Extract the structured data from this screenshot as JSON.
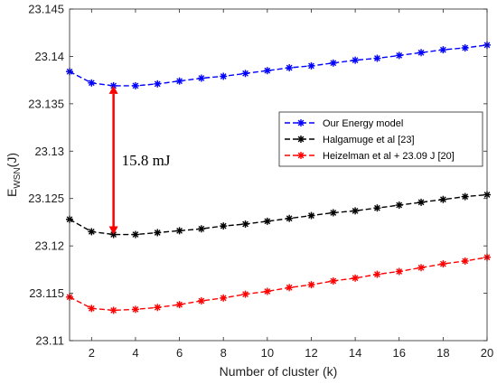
{
  "chart_data": {
    "type": "line",
    "xlabel": "Number of cluster (k)",
    "ylabel_main": "E",
    "ylabel_sub": "WSN",
    "ylabel_unit": "(J)",
    "xlim": [
      1,
      20
    ],
    "ylim": [
      23.11,
      23.145
    ],
    "xticks": [
      "2",
      "4",
      "6",
      "8",
      "10",
      "12",
      "14",
      "16",
      "18",
      "20"
    ],
    "yticks": [
      "23.11",
      "23.115",
      "23.12",
      "23.125",
      "23.13",
      "23.135",
      "23.14",
      "23.145"
    ],
    "x": [
      1,
      2,
      3,
      4,
      5,
      6,
      7,
      8,
      9,
      10,
      11,
      12,
      13,
      14,
      15,
      16,
      17,
      18,
      19,
      20
    ],
    "grid": false,
    "legend_position": "center-right",
    "series": [
      {
        "name": "Our Energy model",
        "color": "#0000ff",
        "values": [
          23.1384,
          23.1372,
          23.1369,
          23.1369,
          23.1371,
          23.1374,
          23.1377,
          23.1379,
          23.1382,
          23.1385,
          23.1388,
          23.139,
          23.1393,
          23.1396,
          23.1398,
          23.1401,
          23.1404,
          23.1407,
          23.1409,
          23.1412
        ]
      },
      {
        "name": "Halgamuge et al [23]",
        "color": "#000000",
        "values": [
          23.1228,
          23.1215,
          23.1212,
          23.1212,
          23.1214,
          23.1216,
          23.1218,
          23.1221,
          23.1223,
          23.1226,
          23.1229,
          23.1232,
          23.1235,
          23.1237,
          23.124,
          23.1243,
          23.1246,
          23.1249,
          23.1252,
          23.1254
        ]
      },
      {
        "name": "Heizelman et al + 23.09 J [20]",
        "color": "#ff0000",
        "values": [
          23.1146,
          23.1134,
          23.1132,
          23.1133,
          23.1135,
          23.1138,
          23.1142,
          23.1145,
          23.1149,
          23.1152,
          23.1156,
          23.1159,
          23.1163,
          23.1166,
          23.117,
          23.1173,
          23.1177,
          23.1181,
          23.1184,
          23.1188
        ]
      }
    ],
    "annotation": {
      "text": "15.8 mJ",
      "color": "#ff0000",
      "x": 3,
      "y_top": 23.1369,
      "y_bottom": 23.1212
    }
  }
}
